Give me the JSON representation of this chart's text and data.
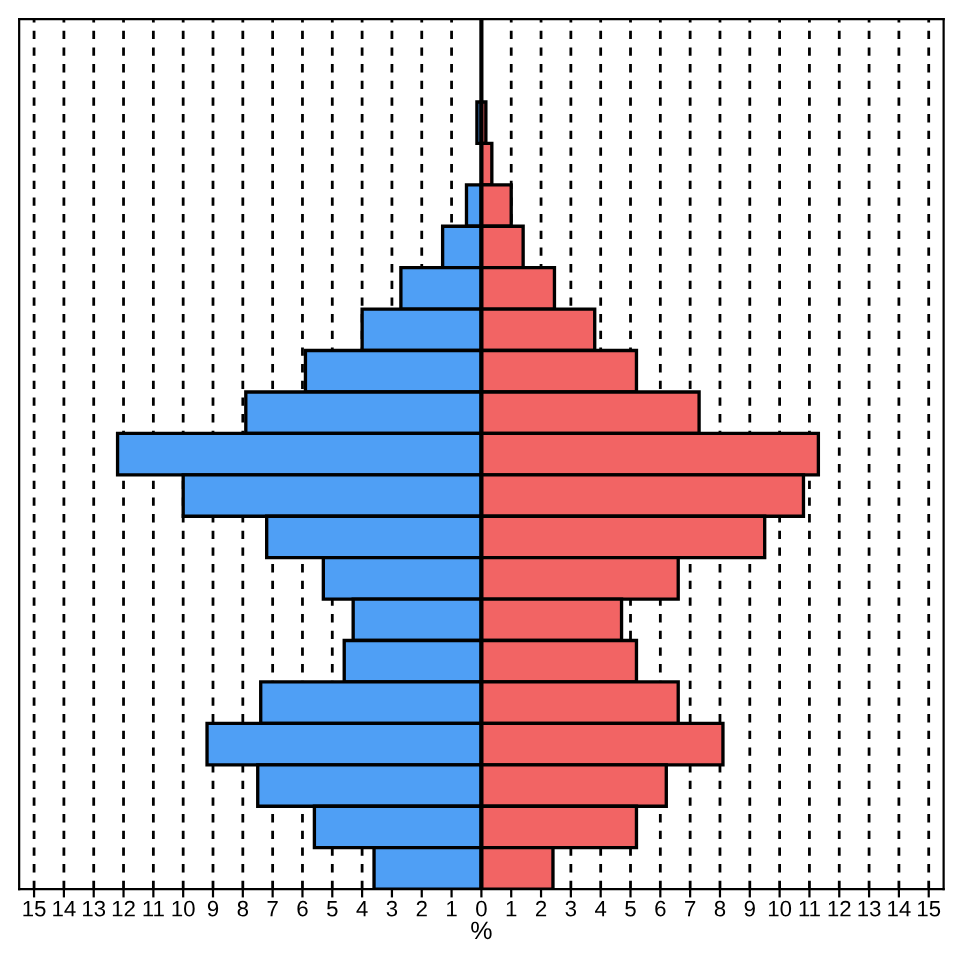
{
  "chart_data": {
    "type": "bar",
    "orientation": "horizontal",
    "stacked": true,
    "xlabel": "%",
    "categories": [
      null,
      null,
      null,
      null,
      null,
      null,
      null,
      null,
      null,
      null,
      null,
      null,
      null,
      null,
      null,
      null,
      null,
      null,
      null,
      null,
      null
    ],
    "ref_lines": [
      {
        "axis": "x",
        "value": 0,
        "color": "#000000"
      }
    ],
    "series": [
      {
        "color": "#4f9ff5",
        "values": [
          null,
          null,
          -0.15,
          null,
          -0.5,
          -1.3,
          -2.7,
          -4.0,
          -5.9,
          -7.9,
          -12.2,
          -10.0,
          -7.2,
          -5.3,
          -4.3,
          -4.6,
          -7.4,
          -9.2,
          -7.5,
          -5.6,
          -3.6
        ]
      },
      {
        "color": "#f26464",
        "values": [
          null,
          null,
          0.15,
          0.35,
          1.0,
          1.4,
          2.45,
          3.8,
          5.2,
          7.3,
          11.3,
          10.8,
          9.5,
          6.6,
          4.7,
          5.2,
          6.6,
          8.1,
          6.2,
          5.2,
          2.4
        ]
      }
    ],
    "xlim": [
      -15.5,
      15.5
    ],
    "xticks": [
      {
        "value": -15,
        "label": "15"
      },
      {
        "value": -14,
        "label": "14"
      },
      {
        "value": -13,
        "label": "13"
      },
      {
        "value": -12,
        "label": "12"
      },
      {
        "value": -11,
        "label": "11"
      },
      {
        "value": -10,
        "label": "10"
      },
      {
        "value": -9,
        "label": "9"
      },
      {
        "value": -8,
        "label": "8"
      },
      {
        "value": -7,
        "label": "7"
      },
      {
        "value": -6,
        "label": "6"
      },
      {
        "value": -5,
        "label": "5"
      },
      {
        "value": -4,
        "label": "4"
      },
      {
        "value": -3,
        "label": "3"
      },
      {
        "value": -2,
        "label": "2"
      },
      {
        "value": -1,
        "label": "1"
      },
      0,
      1,
      2,
      3,
      4,
      5,
      6,
      7,
      8,
      9,
      10,
      11,
      12,
      13,
      14,
      15
    ],
    "grid": "x",
    "line_style": "dashed",
    "tick_labels": "x",
    "legend": false
  }
}
